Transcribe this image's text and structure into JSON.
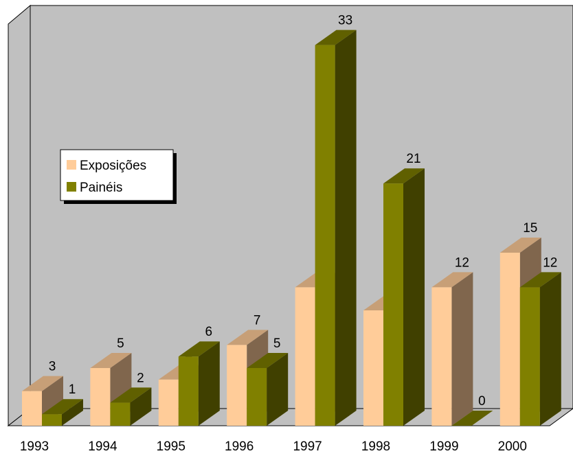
{
  "chart_data": {
    "type": "bar3d",
    "categories": [
      "1993",
      "1994",
      "1995",
      "1996",
      "1997",
      "1998",
      "1999",
      "2000"
    ],
    "series": [
      {
        "name": "Exposições",
        "color": "#ffcc99",
        "values": [
          3,
          5,
          4,
          7,
          12,
          10,
          12,
          15
        ]
      },
      {
        "name": "Painéis",
        "color": "#808000",
        "values": [
          1,
          2,
          6,
          5,
          33,
          21,
          0,
          12
        ]
      }
    ],
    "legend": "left"
  }
}
